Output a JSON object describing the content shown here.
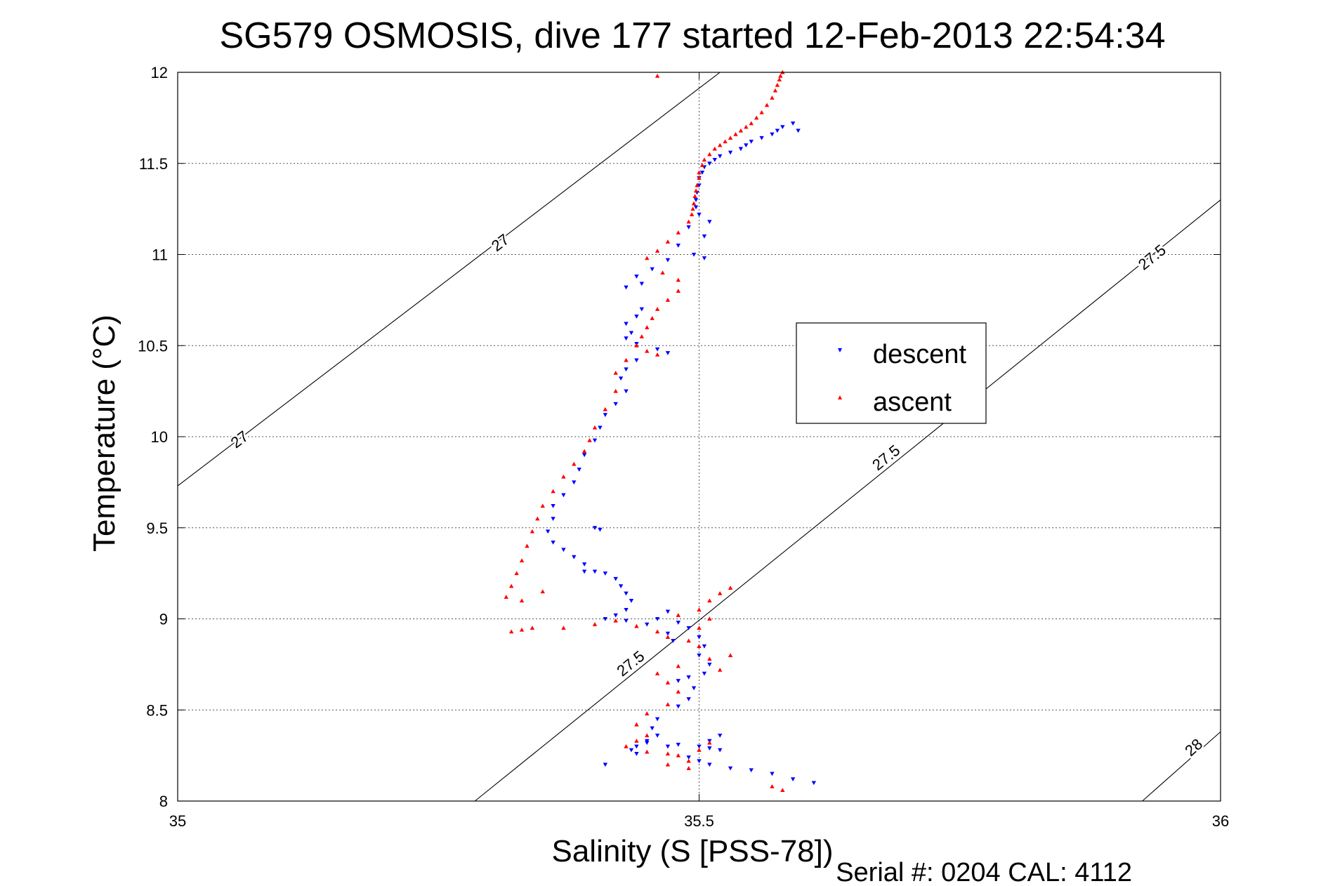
{
  "chart_data": {
    "type": "scatter",
    "title": "SG579 OSMOSIS, dive 177 started 12-Feb-2013 22:54:34",
    "xlabel": "Salinity (S [PSS-78])",
    "ylabel": "Temperature (°C)",
    "footer": "Serial #: 0204  CAL: 4112",
    "xlim": [
      35,
      36
    ],
    "ylim": [
      8,
      12
    ],
    "xticks": [
      "35",
      "35.5",
      "36"
    ],
    "yticks": [
      "8",
      "8.5",
      "9",
      "9.5",
      "10",
      "10.5",
      "11",
      "11.5",
      "12"
    ],
    "grid": true,
    "legend_position": "right-center",
    "isopycnals": [
      {
        "label": "27",
        "points": [
          [
            35.0,
            9.73
          ],
          [
            35.52,
            12.0
          ]
        ],
        "label_positions": [
          [
            35.06,
            9.98
          ],
          [
            35.31,
            11.06
          ]
        ]
      },
      {
        "label": "27.5",
        "points": [
          [
            35.285,
            8.0
          ],
          [
            36.0,
            11.3
          ]
        ],
        "label_positions": [
          [
            35.435,
            8.75
          ],
          [
            35.68,
            9.88
          ],
          [
            35.935,
            10.98
          ]
        ]
      },
      {
        "label": "28",
        "points": [
          [
            35.925,
            8.0
          ],
          [
            36.0,
            8.38
          ]
        ],
        "label_positions": [
          [
            35.975,
            8.29
          ]
        ]
      }
    ],
    "series": [
      {
        "name": "descent",
        "color": "#0000ff",
        "marker": "triangle-down",
        "points": [
          [
            35.59,
            11.72
          ],
          [
            35.58,
            11.7
          ],
          [
            35.575,
            11.68
          ],
          [
            35.57,
            11.66
          ],
          [
            35.56,
            11.64
          ],
          [
            35.55,
            11.62
          ],
          [
            35.545,
            11.6
          ],
          [
            35.54,
            11.58
          ],
          [
            35.53,
            11.56
          ],
          [
            35.52,
            11.54
          ],
          [
            35.515,
            11.52
          ],
          [
            35.51,
            11.5
          ],
          [
            35.505,
            11.48
          ],
          [
            35.503,
            11.45
          ],
          [
            35.5,
            11.42
          ],
          [
            35.5,
            11.38
          ],
          [
            35.498,
            11.34
          ],
          [
            35.497,
            11.3
          ],
          [
            35.497,
            11.26
          ],
          [
            35.5,
            11.22
          ],
          [
            35.51,
            11.18
          ],
          [
            35.49,
            11.15
          ],
          [
            35.505,
            11.1
          ],
          [
            35.48,
            11.05
          ],
          [
            35.495,
            11.0
          ],
          [
            35.47,
            10.97
          ],
          [
            35.505,
            10.98
          ],
          [
            35.455,
            10.92
          ],
          [
            35.44,
            10.88
          ],
          [
            35.445,
            10.84
          ],
          [
            35.43,
            10.82
          ],
          [
            35.445,
            10.7
          ],
          [
            35.44,
            10.66
          ],
          [
            35.43,
            10.62
          ],
          [
            35.435,
            10.57
          ],
          [
            35.43,
            10.54
          ],
          [
            35.44,
            10.51
          ],
          [
            35.46,
            10.48
          ],
          [
            35.47,
            10.46
          ],
          [
            35.44,
            10.42
          ],
          [
            35.43,
            10.37
          ],
          [
            35.425,
            10.32
          ],
          [
            35.43,
            10.25
          ],
          [
            35.42,
            10.18
          ],
          [
            35.41,
            10.12
          ],
          [
            35.405,
            10.05
          ],
          [
            35.4,
            9.98
          ],
          [
            35.39,
            9.9
          ],
          [
            35.385,
            9.82
          ],
          [
            35.38,
            9.75
          ],
          [
            35.37,
            9.68
          ],
          [
            35.36,
            9.62
          ],
          [
            35.36,
            9.55
          ],
          [
            35.355,
            9.48
          ],
          [
            35.36,
            9.42
          ],
          [
            35.37,
            9.38
          ],
          [
            35.38,
            9.34
          ],
          [
            35.39,
            9.3
          ],
          [
            35.4,
            9.5
          ],
          [
            35.405,
            9.49
          ],
          [
            35.39,
            9.26
          ],
          [
            35.4,
            9.26
          ],
          [
            35.41,
            9.25
          ],
          [
            35.42,
            9.22
          ],
          [
            35.425,
            9.18
          ],
          [
            35.43,
            9.14
          ],
          [
            35.435,
            9.1
          ],
          [
            35.43,
            9.05
          ],
          [
            35.42,
            9.02
          ],
          [
            35.41,
            9.0
          ],
          [
            35.43,
            8.99
          ],
          [
            35.45,
            8.97
          ],
          [
            35.46,
            9.0
          ],
          [
            35.47,
            9.04
          ],
          [
            35.48,
            8.98
          ],
          [
            35.47,
            8.92
          ],
          [
            35.475,
            8.88
          ],
          [
            35.49,
            8.95
          ],
          [
            35.5,
            8.9
          ],
          [
            35.505,
            8.85
          ],
          [
            35.5,
            8.8
          ],
          [
            35.51,
            8.75
          ],
          [
            35.505,
            8.7
          ],
          [
            35.49,
            8.68
          ],
          [
            35.48,
            8.66
          ],
          [
            35.495,
            8.62
          ],
          [
            35.49,
            8.56
          ],
          [
            35.48,
            8.52
          ],
          [
            35.46,
            8.45
          ],
          [
            35.455,
            8.4
          ],
          [
            35.46,
            8.36
          ],
          [
            35.45,
            8.33
          ],
          [
            35.44,
            8.3
          ],
          [
            35.435,
            8.28
          ],
          [
            35.44,
            8.26
          ],
          [
            35.45,
            8.32
          ],
          [
            35.47,
            8.3
          ],
          [
            35.48,
            8.31
          ],
          [
            35.5,
            8.3
          ],
          [
            35.51,
            8.29
          ],
          [
            35.52,
            8.28
          ],
          [
            35.51,
            8.33
          ],
          [
            35.52,
            8.36
          ],
          [
            35.5,
            8.22
          ],
          [
            35.49,
            8.24
          ],
          [
            35.51,
            8.2
          ],
          [
            35.53,
            8.18
          ],
          [
            35.55,
            8.17
          ],
          [
            35.57,
            8.15
          ],
          [
            35.59,
            8.12
          ],
          [
            35.61,
            8.1
          ],
          [
            35.41,
            8.2
          ],
          [
            35.595,
            11.68
          ]
        ]
      },
      {
        "name": "ascent",
        "color": "#ff0000",
        "marker": "triangle-up",
        "points": [
          [
            35.58,
            12.0
          ],
          [
            35.578,
            11.98
          ],
          [
            35.577,
            11.96
          ],
          [
            35.575,
            11.93
          ],
          [
            35.573,
            11.9
          ],
          [
            35.57,
            11.86
          ],
          [
            35.565,
            11.82
          ],
          [
            35.56,
            11.78
          ],
          [
            35.555,
            11.75
          ],
          [
            35.55,
            11.72
          ],
          [
            35.545,
            11.7
          ],
          [
            35.54,
            11.68
          ],
          [
            35.535,
            11.66
          ],
          [
            35.53,
            11.64
          ],
          [
            35.525,
            11.62
          ],
          [
            35.52,
            11.6
          ],
          [
            35.515,
            11.58
          ],
          [
            35.51,
            11.55
          ],
          [
            35.505,
            11.52
          ],
          [
            35.503,
            11.49
          ],
          [
            35.5,
            11.45
          ],
          [
            35.5,
            11.42
          ],
          [
            35.498,
            11.38
          ],
          [
            35.497,
            11.35
          ],
          [
            35.496,
            11.32
          ],
          [
            35.495,
            11.28
          ],
          [
            35.494,
            11.25
          ],
          [
            35.493,
            11.22
          ],
          [
            35.49,
            11.18
          ],
          [
            35.48,
            11.12
          ],
          [
            35.47,
            11.07
          ],
          [
            35.46,
            11.02
          ],
          [
            35.45,
            10.98
          ],
          [
            35.465,
            10.9
          ],
          [
            35.48,
            10.86
          ],
          [
            35.48,
            10.8
          ],
          [
            35.47,
            10.75
          ],
          [
            35.46,
            10.7
          ],
          [
            35.455,
            10.65
          ],
          [
            35.45,
            10.6
          ],
          [
            35.445,
            10.55
          ],
          [
            35.44,
            10.5
          ],
          [
            35.45,
            10.47
          ],
          [
            35.46,
            10.45
          ],
          [
            35.43,
            10.42
          ],
          [
            35.42,
            10.35
          ],
          [
            35.42,
            10.25
          ],
          [
            35.41,
            10.15
          ],
          [
            35.4,
            10.05
          ],
          [
            35.395,
            9.98
          ],
          [
            35.39,
            9.92
          ],
          [
            35.38,
            9.85
          ],
          [
            35.37,
            9.78
          ],
          [
            35.36,
            9.7
          ],
          [
            35.35,
            9.62
          ],
          [
            35.345,
            9.55
          ],
          [
            35.34,
            9.48
          ],
          [
            35.335,
            9.4
          ],
          [
            35.33,
            9.32
          ],
          [
            35.325,
            9.25
          ],
          [
            35.32,
            9.18
          ],
          [
            35.315,
            9.12
          ],
          [
            35.33,
            9.1
          ],
          [
            35.35,
            9.15
          ],
          [
            35.34,
            8.95
          ],
          [
            35.33,
            8.94
          ],
          [
            35.32,
            8.93
          ],
          [
            35.37,
            8.95
          ],
          [
            35.4,
            8.97
          ],
          [
            35.42,
            8.99
          ],
          [
            35.44,
            8.96
          ],
          [
            35.46,
            8.93
          ],
          [
            35.47,
            8.9
          ],
          [
            35.48,
            9.02
          ],
          [
            35.5,
            9.05
          ],
          [
            35.51,
            9.1
          ],
          [
            35.52,
            9.14
          ],
          [
            35.53,
            9.17
          ],
          [
            35.51,
            9.0
          ],
          [
            35.5,
            8.95
          ],
          [
            35.49,
            8.88
          ],
          [
            35.5,
            8.85
          ],
          [
            35.51,
            8.78
          ],
          [
            35.52,
            8.72
          ],
          [
            35.53,
            8.8
          ],
          [
            35.48,
            8.74
          ],
          [
            35.46,
            8.7
          ],
          [
            35.47,
            8.65
          ],
          [
            35.48,
            8.6
          ],
          [
            35.47,
            8.53
          ],
          [
            35.45,
            8.48
          ],
          [
            35.44,
            8.42
          ],
          [
            35.45,
            8.36
          ],
          [
            35.44,
            8.33
          ],
          [
            35.43,
            8.3
          ],
          [
            35.45,
            8.27
          ],
          [
            35.47,
            8.26
          ],
          [
            35.48,
            8.25
          ],
          [
            35.49,
            8.22
          ],
          [
            35.5,
            8.28
          ],
          [
            35.51,
            8.32
          ],
          [
            35.49,
            8.18
          ],
          [
            35.47,
            8.2
          ],
          [
            35.58,
            8.06
          ],
          [
            35.57,
            8.08
          ],
          [
            35.46,
            11.98
          ]
        ]
      }
    ]
  }
}
